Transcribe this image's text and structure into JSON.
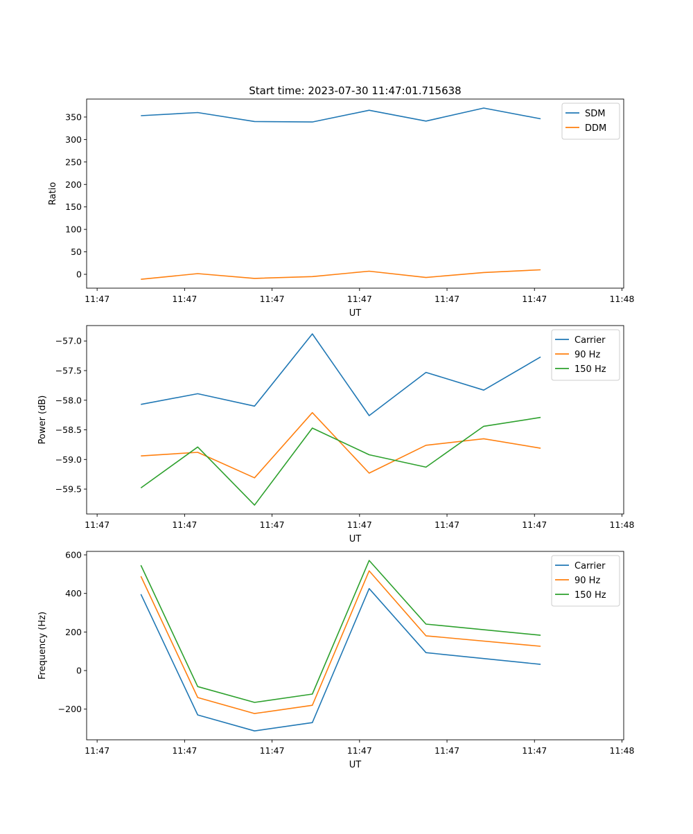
{
  "figure_title": "Start time: 2023-07-30 11:47:01.715638",
  "chart_data": [
    {
      "type": "line",
      "title": "Start time: 2023-07-30 11:47:01.715638",
      "xlabel": "UT",
      "ylabel": "Ratio",
      "x_unit": "seconds after 11:47:00",
      "xlim": [
        -1.2,
        60.2
      ],
      "ylim": [
        -30.8,
        390
      ],
      "xticks": [
        0,
        10,
        20,
        30,
        40,
        50,
        60
      ],
      "xtick_labels": [
        "11:47",
        "11:47",
        "11:47",
        "11:47",
        "11:47",
        "11:47",
        "11:48"
      ],
      "yticks": [
        0,
        50,
        100,
        150,
        200,
        250,
        300,
        350
      ],
      "ytick_labels": [
        "0",
        "50",
        "100",
        "150",
        "200",
        "250",
        "300",
        "350"
      ],
      "legend": "upper-right",
      "grid": false,
      "series": [
        {
          "name": "SDM",
          "color": "#1f77b4",
          "x": [
            5.0,
            11.5,
            18.0,
            24.6,
            31.1,
            37.6,
            44.2,
            50.7
          ],
          "y": [
            353,
            360,
            340,
            339,
            365,
            341,
            370,
            346
          ]
        },
        {
          "name": "DDM",
          "color": "#ff7f0e",
          "x": [
            5.0,
            11.5,
            18.0,
            24.6,
            31.1,
            37.6,
            44.2,
            50.7
          ],
          "y": [
            -11,
            1.5,
            -9,
            -5,
            7,
            -7,
            4,
            10
          ]
        }
      ]
    },
    {
      "type": "line",
      "xlabel": "UT",
      "ylabel": "Power (dB)",
      "x_unit": "seconds after 11:47:00",
      "xlim": [
        -1.2,
        60.2
      ],
      "ylim": [
        -59.92,
        -56.74
      ],
      "xticks": [
        0,
        10,
        20,
        30,
        40,
        50,
        60
      ],
      "xtick_labels": [
        "11:47",
        "11:47",
        "11:47",
        "11:47",
        "11:47",
        "11:47",
        "11:48"
      ],
      "yticks": [
        -59.5,
        -59.0,
        -58.5,
        -58.0,
        -57.5,
        -57.0
      ],
      "ytick_labels": [
        "−59.5",
        "−59.0",
        "−58.5",
        "−58.0",
        "−57.5",
        "−57.0"
      ],
      "legend": "upper-right",
      "grid": false,
      "series": [
        {
          "name": "Carrier",
          "color": "#1f77b4",
          "x": [
            5.0,
            11.5,
            18.0,
            24.6,
            31.1,
            37.6,
            44.2,
            50.7
          ],
          "y": [
            -58.07,
            -57.89,
            -58.1,
            -56.88,
            -58.26,
            -57.53,
            -57.83,
            -57.27
          ]
        },
        {
          "name": "90 Hz",
          "color": "#ff7f0e",
          "x": [
            5.0,
            11.5,
            18.0,
            24.6,
            31.1,
            37.6,
            44.2,
            50.7
          ],
          "y": [
            -58.94,
            -58.88,
            -59.31,
            -58.21,
            -59.23,
            -58.76,
            -58.65,
            -58.81
          ]
        },
        {
          "name": "150 Hz",
          "color": "#2ca02c",
          "x": [
            5.0,
            11.5,
            18.0,
            24.6,
            31.1,
            37.6,
            44.2,
            50.7
          ],
          "y": [
            -59.48,
            -58.79,
            -59.77,
            -58.47,
            -58.92,
            -59.13,
            -58.44,
            -58.29
          ]
        }
      ]
    },
    {
      "type": "line",
      "xlabel": "UT",
      "ylabel": "Frequency (Hz)",
      "x_unit": "seconds after 11:47:00",
      "xlim": [
        -1.2,
        60.2
      ],
      "ylim": [
        -359,
        618
      ],
      "xticks": [
        0,
        10,
        20,
        30,
        40,
        50,
        60
      ],
      "xtick_labels": [
        "11:47",
        "11:47",
        "11:47",
        "11:47",
        "11:47",
        "11:47",
        "11:48"
      ],
      "yticks": [
        -200,
        0,
        200,
        400,
        600
      ],
      "ytick_labels": [
        "−200",
        "0",
        "200",
        "400",
        "600"
      ],
      "legend": "upper-right",
      "grid": false,
      "series": [
        {
          "name": "Carrier",
          "color": "#1f77b4",
          "x": [
            5.0,
            11.5,
            18.0,
            24.6,
            31.1,
            37.6,
            50.7
          ],
          "y": [
            396,
            -230,
            -313,
            -270,
            425,
            93,
            32
          ]
        },
        {
          "name": "90 Hz",
          "color": "#ff7f0e",
          "x": [
            5.0,
            11.5,
            18.0,
            24.6,
            31.1,
            37.6,
            50.7
          ],
          "y": [
            489,
            -140,
            -223,
            -180,
            517,
            180,
            126
          ]
        },
        {
          "name": "150 Hz",
          "color": "#2ca02c",
          "x": [
            5.0,
            11.5,
            18.0,
            24.6,
            31.1,
            37.6,
            50.7
          ],
          "y": [
            546,
            -83,
            -165,
            -122,
            571,
            241,
            183
          ]
        }
      ]
    }
  ]
}
